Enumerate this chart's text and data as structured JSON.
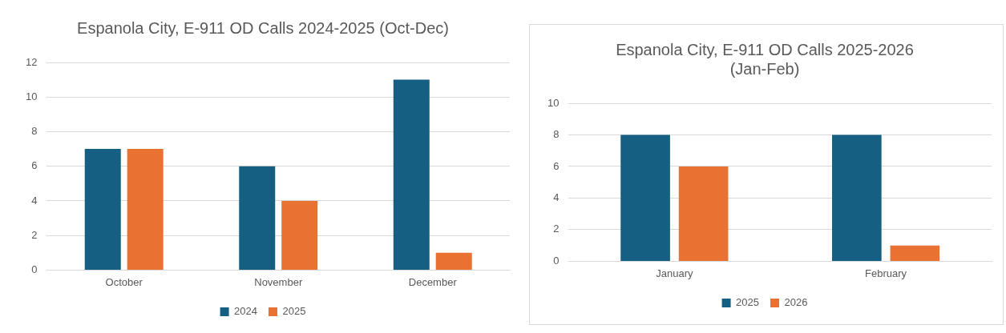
{
  "chart_data": [
    {
      "type": "bar",
      "title": "Espanola City, E-911 OD Calls 2024-2025 (Oct-Dec)",
      "categories": [
        "October",
        "November",
        "December"
      ],
      "series": [
        {
          "name": "2024",
          "color": "#156082",
          "values": [
            7,
            6,
            11
          ]
        },
        {
          "name": "2025",
          "color": "#e97132",
          "values": [
            7,
            4,
            1
          ]
        }
      ],
      "ylim": [
        0,
        12
      ],
      "yticks": [
        0,
        2,
        4,
        6,
        8,
        10,
        12
      ],
      "grid": "y",
      "legend": "bottom"
    },
    {
      "type": "bar",
      "title": [
        "Espanola City, E-911 OD Calls 2025-2026",
        "(Jan-Feb)"
      ],
      "categories": [
        "January",
        "February"
      ],
      "series": [
        {
          "name": "2025",
          "color": "#156082",
          "values": [
            8,
            8
          ]
        },
        {
          "name": "2026",
          "color": "#e97132",
          "values": [
            6,
            1
          ]
        }
      ],
      "ylim": [
        0,
        10
      ],
      "yticks": [
        0,
        2,
        4,
        6,
        8,
        10
      ],
      "grid": "y",
      "legend": "bottom"
    }
  ]
}
